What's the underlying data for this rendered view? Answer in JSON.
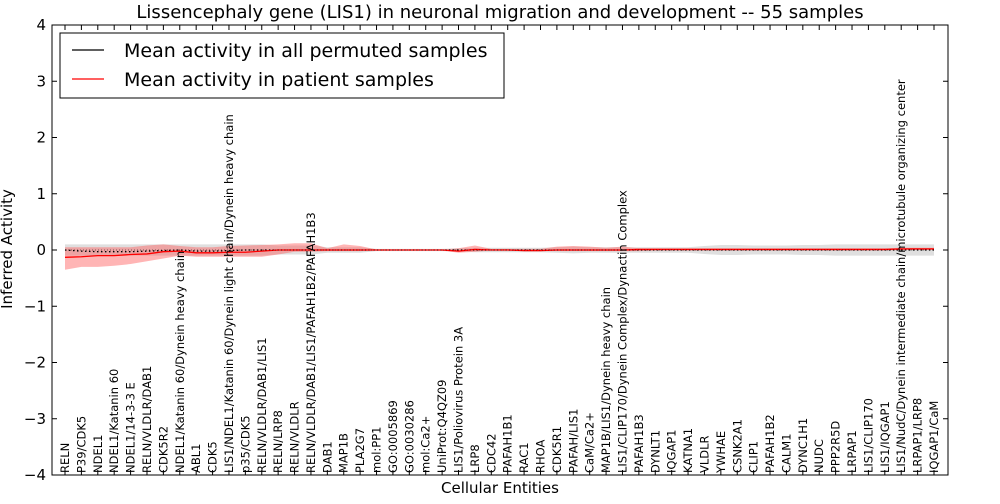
{
  "chart_data": {
    "type": "line",
    "title": "Lissencephaly gene (LIS1) in neuronal migration and development -- 55 samples",
    "xlabel": "Cellular Entities",
    "ylabel": "Inferred Activity",
    "ylim": [
      -4,
      4
    ],
    "yticks": [
      -4,
      -3,
      -2,
      -1,
      0,
      1,
      2,
      3,
      4
    ],
    "ytick_labels": [
      "−4",
      "−3",
      "−2",
      "−1",
      "0",
      "1",
      "2",
      "3",
      "4"
    ],
    "legend_position": "upper-left",
    "categories": [
      "RELN",
      "P39/CDK5",
      "NDEL1",
      "NDEL1/Katanin 60",
      "NDEL1/14-3-3 E",
      "RELN/VLDLR/DAB1",
      "CDK5R2",
      "NDEL1/Katanin 60/Dynein heavy chain",
      "ABL1",
      "CDK5",
      "LIS1/NDEL1/Katanin 60/Dynein light chain/Dynein heavy chain",
      "p35/CDK5",
      "RELN/VLDLR/DAB1/LIS1",
      "RELN/LRP8",
      "RELN/VLDLR",
      "RELN/VLDLR/DAB1/LIS1/PAFAH1B2/PAFAH1B3",
      "DAB1",
      "MAP1B",
      "PLA2G7",
      "mol:PP1",
      "GO:0005869",
      "GO:0030286",
      "mol:Ca2+",
      "UniProt:Q4QZ09",
      "LIS1/Poliovirus Protein 3A",
      "LRP8",
      "CDC42",
      "PAFAH1B1",
      "RAC1",
      "RHOA",
      "CDK5R1",
      "PAFAH/LIS1",
      "CaM/Ca2+",
      "MAP1B/LIS1/Dynein heavy chain",
      "LIS1/CLIP170/Dynein Complex/Dynactin Complex",
      "PAFAH1B3",
      "DYNLT1",
      "IQGAP1",
      "KATNA1",
      "VLDLR",
      "YWHAE",
      "CSNK2A1",
      "CLIP1",
      "PAFAH1B2",
      "CALM1",
      "DYNC1H1",
      "NUDC",
      "PPP2R5D",
      "LRPAP1",
      "LIS1/CLIP170",
      "LIS1/IQGAP1",
      "LIS1/NudC/Dynein intermediate chain/microtubule organizing center",
      "LRPAP1/LRP8",
      "IQGAP1/CaM"
    ],
    "series": [
      {
        "name": "Mean activity in all permuted samples",
        "color": "#000000",
        "style": "dotted",
        "values": [
          0.0,
          -0.02,
          -0.03,
          -0.03,
          -0.03,
          -0.02,
          -0.01,
          0.0,
          -0.02,
          -0.02,
          -0.01,
          0.0,
          0.0,
          0.0,
          0.0,
          0.0,
          0.0,
          0.0,
          0.0,
          0.0,
          0.0,
          0.0,
          0.0,
          0.0,
          0.0,
          0.0,
          0.0,
          0.0,
          0.0,
          0.0,
          0.0,
          0.0,
          0.0,
          0.0,
          0.0,
          0.0,
          0.0,
          0.0,
          0.0,
          0.0,
          0.0,
          0.0,
          0.0,
          0.0,
          0.0,
          0.0,
          0.0,
          0.0,
          0.0,
          0.0,
          0.0,
          0.0,
          0.0,
          0.0
        ],
        "band_lower": [
          -0.1,
          -0.1,
          -0.1,
          -0.1,
          -0.1,
          -0.1,
          -0.1,
          -0.1,
          -0.1,
          -0.1,
          -0.1,
          -0.1,
          -0.1,
          -0.08,
          -0.08,
          -0.08,
          -0.05,
          -0.05,
          -0.05,
          -0.02,
          -0.02,
          -0.02,
          -0.02,
          -0.02,
          -0.03,
          -0.04,
          -0.04,
          -0.04,
          -0.04,
          -0.04,
          -0.05,
          -0.06,
          -0.05,
          -0.05,
          -0.05,
          -0.05,
          -0.05,
          -0.05,
          -0.05,
          -0.07,
          -0.09,
          -0.09,
          -0.08,
          -0.08,
          -0.08,
          -0.09,
          -0.09,
          -0.1,
          -0.1,
          -0.1,
          -0.1,
          -0.1,
          -0.1,
          -0.1
        ],
        "band_upper": [
          0.1,
          0.1,
          0.1,
          0.1,
          0.1,
          0.1,
          0.1,
          0.1,
          0.1,
          0.1,
          0.1,
          0.1,
          0.1,
          0.08,
          0.08,
          0.08,
          0.05,
          0.05,
          0.05,
          0.02,
          0.02,
          0.02,
          0.02,
          0.02,
          0.03,
          0.04,
          0.04,
          0.04,
          0.04,
          0.04,
          0.05,
          0.06,
          0.05,
          0.05,
          0.05,
          0.05,
          0.05,
          0.05,
          0.05,
          0.07,
          0.09,
          0.09,
          0.08,
          0.08,
          0.08,
          0.09,
          0.09,
          0.1,
          0.1,
          0.1,
          0.1,
          0.1,
          0.1,
          0.1
        ]
      },
      {
        "name": "Mean activity in patient samples",
        "color": "#ff0000",
        "style": "solid",
        "values": [
          -0.13,
          -0.12,
          -0.1,
          -0.1,
          -0.08,
          -0.07,
          -0.03,
          -0.02,
          -0.05,
          -0.05,
          -0.04,
          -0.04,
          -0.02,
          0.0,
          0.0,
          0.0,
          0.0,
          0.0,
          0.0,
          0.0,
          0.0,
          0.0,
          0.0,
          0.0,
          -0.02,
          0.01,
          0.0,
          0.0,
          -0.01,
          -0.01,
          0.0,
          0.0,
          0.0,
          0.0,
          0.0,
          0.01,
          0.01,
          0.01,
          0.01,
          0.01,
          0.01,
          0.01,
          0.01,
          0.01,
          0.01,
          0.01,
          0.01,
          0.01,
          0.01,
          0.01,
          0.01,
          0.02,
          0.02,
          0.02
        ],
        "band_lower": [
          -0.35,
          -0.3,
          -0.3,
          -0.28,
          -0.25,
          -0.2,
          -0.15,
          -0.1,
          -0.12,
          -0.12,
          -0.12,
          -0.12,
          -0.12,
          -0.08,
          -0.03,
          -0.03,
          -0.02,
          -0.02,
          -0.02,
          -0.01,
          -0.01,
          -0.01,
          -0.01,
          -0.01,
          -0.05,
          -0.03,
          -0.01,
          -0.01,
          -0.02,
          -0.02,
          -0.02,
          -0.02,
          -0.02,
          -0.02,
          -0.02,
          -0.02,
          -0.01,
          -0.01,
          -0.01,
          -0.01,
          -0.01,
          -0.01,
          -0.01,
          -0.01,
          -0.01,
          -0.01,
          -0.01,
          -0.01,
          -0.01,
          -0.01,
          -0.01,
          0.0,
          0.0,
          0.0
        ],
        "band_upper": [
          0.05,
          0.05,
          0.05,
          0.05,
          0.05,
          0.08,
          0.1,
          0.07,
          0.05,
          0.05,
          0.07,
          0.08,
          0.09,
          0.1,
          0.12,
          0.12,
          0.03,
          0.1,
          0.07,
          0.01,
          0.01,
          0.01,
          0.01,
          0.01,
          0.03,
          0.08,
          0.02,
          0.02,
          0.02,
          0.02,
          0.06,
          0.07,
          0.06,
          0.04,
          0.06,
          0.03,
          0.03,
          0.03,
          0.03,
          0.03,
          0.03,
          0.03,
          0.03,
          0.03,
          0.03,
          0.03,
          0.03,
          0.03,
          0.03,
          0.03,
          0.03,
          0.04,
          0.04,
          0.04
        ]
      }
    ]
  }
}
